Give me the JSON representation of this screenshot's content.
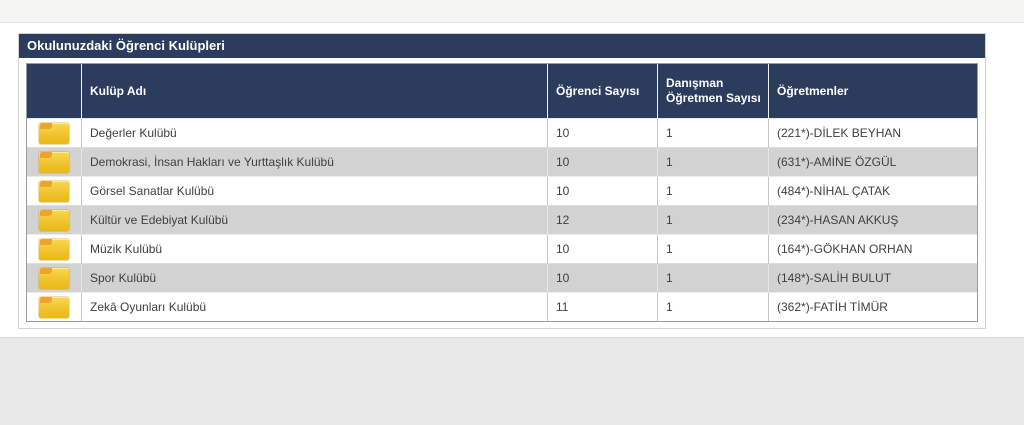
{
  "panel": {
    "title": "Okulunuzdaki Öğrenci Kulüpleri"
  },
  "table": {
    "columns": [
      {
        "key": "icon",
        "label": ""
      },
      {
        "key": "name",
        "label": "Kulüp Adı"
      },
      {
        "key": "students",
        "label": "Öğrenci Sayısı"
      },
      {
        "key": "advisors",
        "label": "Danışman Öğretmen Sayısı"
      },
      {
        "key": "teachers",
        "label": "Öğretmenler"
      }
    ],
    "row_icon": "folder-icon",
    "rows": [
      {
        "name": "Değerler Kulübü",
        "students": "10",
        "advisors": "1",
        "teachers": "(221*)-DİLEK BEYHAN"
      },
      {
        "name": "Demokrasi, İnsan Hakları ve Yurttaşlık Kulübü",
        "students": "10",
        "advisors": "1",
        "teachers": "(631*)-AMİNE ÖZGÜL"
      },
      {
        "name": "Görsel Sanatlar Kulübü",
        "students": "10",
        "advisors": "1",
        "teachers": "(484*)-NİHAL ÇATAK"
      },
      {
        "name": "Kültür ve Edebiyat Kulübü",
        "students": "12",
        "advisors": "1",
        "teachers": "(234*)-HASAN AKKUŞ"
      },
      {
        "name": "Müzik Kulübü",
        "students": "10",
        "advisors": "1",
        "teachers": "(164*)-GÖKHAN ORHAN"
      },
      {
        "name": "Spor Kulübü",
        "students": "10",
        "advisors": "1",
        "teachers": "(148*)-SALİH BULUT"
      },
      {
        "name": "Zekâ Oyunları Kulübü",
        "students": "11",
        "advisors": "1",
        "teachers": "(362*)-FATİH TİMÜR"
      }
    ]
  },
  "colors": {
    "header_navy": "#2b3c5c",
    "row_stripe_gray": "#d2d2d2",
    "folder_yellow": "#f1c32e",
    "folder_tab_orange": "#efa32f",
    "footer_gray": "#e9e9e9"
  }
}
